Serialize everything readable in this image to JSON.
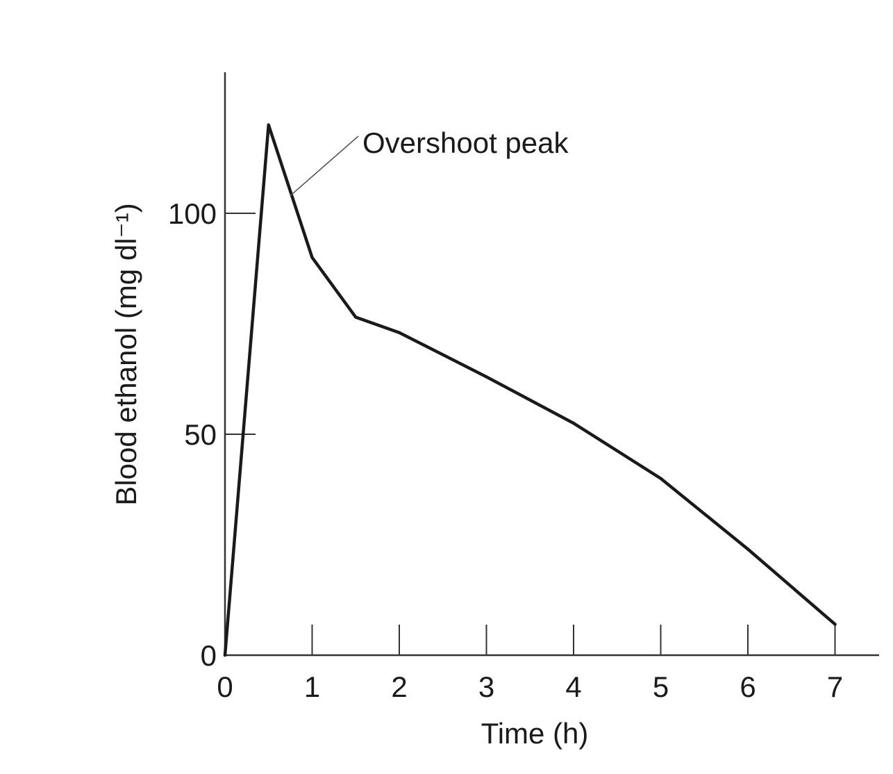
{
  "chart_data": {
    "type": "line",
    "title": "",
    "xlabel": "Time (h)",
    "ylabel": "Blood ethanol (mg dl⁻¹)",
    "xlim": [
      0,
      7.5
    ],
    "ylim": [
      0,
      132
    ],
    "x_ticks": [
      0,
      1,
      2,
      3,
      4,
      5,
      6,
      7
    ],
    "y_ticks": [
      0,
      50,
      100
    ],
    "grid": false,
    "legend": "none",
    "series": [
      {
        "name": "Blood ethanol",
        "x": [
          0,
          0.5,
          1.0,
          1.5,
          2.0,
          3.0,
          4.0,
          5.0,
          6.0,
          7.0
        ],
        "y": [
          0,
          120,
          90,
          76.5,
          73,
          63,
          52.5,
          40,
          24,
          7
        ]
      }
    ],
    "annotations": [
      {
        "text": "Overshoot peak",
        "target_x": 0.75,
        "target_y": 104
      }
    ],
    "colors": {
      "line": "#1a1a1a",
      "axis": "#333333"
    }
  }
}
